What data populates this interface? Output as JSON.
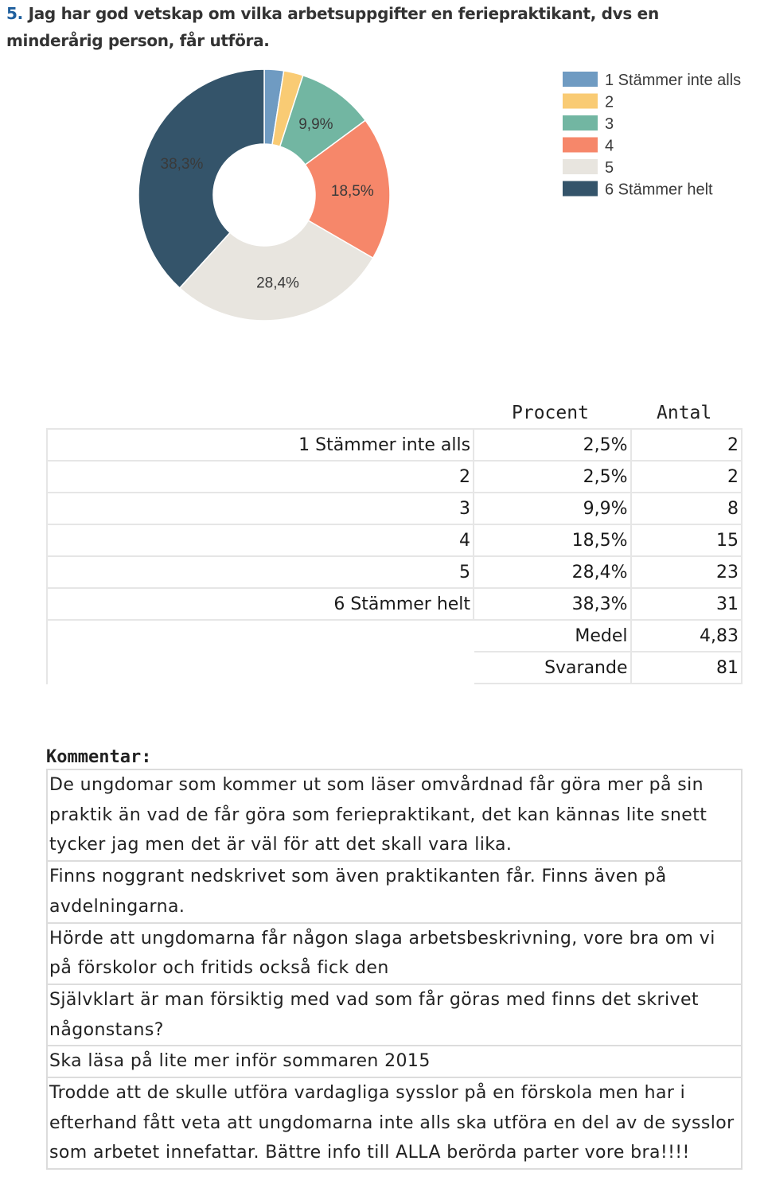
{
  "question": {
    "number": "5.",
    "text": "Jag har god vetskap om vilka arbetsuppgifter en feriepraktikant, dvs en minderårig person, får utföra."
  },
  "chart_data": {
    "type": "pie",
    "categories": [
      "1 Stämmer inte alls",
      "2",
      "3",
      "4",
      "5",
      "6 Stämmer helt"
    ],
    "values": [
      2.5,
      2.5,
      9.9,
      18.5,
      28.4,
      38.3
    ],
    "data_labels": [
      "",
      "",
      "9,9%",
      "18,5%",
      "28,4%",
      "38,3%"
    ],
    "colors": [
      "#6f9bc2",
      "#f9cb74",
      "#72b6a2",
      "#f6876a",
      "#e8e5df",
      "#34546a"
    ],
    "legend_position": "top-right"
  },
  "table": {
    "headers": {
      "percent": "Procent",
      "count": "Antal"
    },
    "rows": [
      {
        "label": "1 Stämmer inte alls",
        "percent": "2,5%",
        "count": "2"
      },
      {
        "label": "2",
        "percent": "2,5%",
        "count": "2"
      },
      {
        "label": "3",
        "percent": "9,9%",
        "count": "8"
      },
      {
        "label": "4",
        "percent": "18,5%",
        "count": "15"
      },
      {
        "label": "5",
        "percent": "28,4%",
        "count": "23"
      },
      {
        "label": "6 Stämmer helt",
        "percent": "38,3%",
        "count": "31"
      }
    ],
    "summary": [
      {
        "label": "Medel",
        "value": "4,83"
      },
      {
        "label": "Svarande",
        "value": "81"
      }
    ]
  },
  "comments": {
    "heading": "Kommentar:",
    "items": [
      "De ungdomar som kommer ut som läser omvårdnad får göra mer på sin praktik än vad de får göra som feriepraktikant, det kan kännas lite snett tycker jag men det är väl för att det skall vara lika.",
      "Finns noggrant nedskrivet som även praktikanten får. Finns även på avdelningarna.",
      "Hörde att ungdomarna får någon slaga arbetsbeskrivning, vore bra om vi på förskolor och fritids också fick den",
      "Självklart är man försiktig med vad som får  göras med finns det skrivet någonstans?",
      "Ska läsa på lite mer inför sommaren 2015",
      "Trodde att de skulle utföra vardagliga sysslor på en förskola men har i efterhand fått veta att ungdomarna inte alls ska utföra en del av de sysslor som arbetet innefattar. Bättre info till ALLA berörda parter vore bra!!!!"
    ]
  }
}
